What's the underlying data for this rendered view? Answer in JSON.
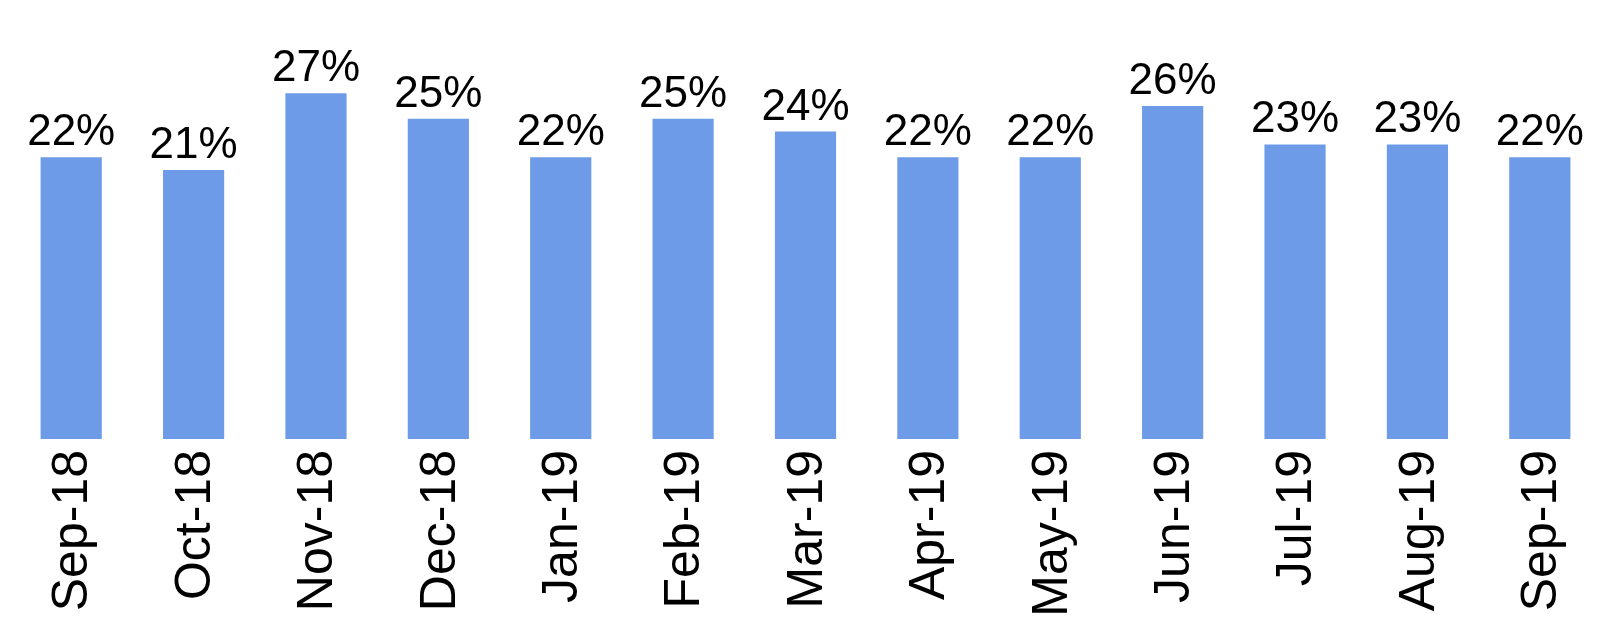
{
  "chart_data": {
    "type": "bar",
    "categories": [
      "Sep-18",
      "Oct-18",
      "Nov-18",
      "Dec-18",
      "Jan-19",
      "Feb-19",
      "Mar-19",
      "Apr-19",
      "May-19",
      "Jun-19",
      "Jul-19",
      "Aug-19",
      "Sep-19"
    ],
    "values": [
      22,
      21,
      27,
      25,
      22,
      25,
      24,
      22,
      22,
      26,
      23,
      23,
      22
    ],
    "value_labels": [
      "22%",
      "21%",
      "27%",
      "25%",
      "22%",
      "25%",
      "24%",
      "22%",
      "22%",
      "26%",
      "23%",
      "23%",
      "22%"
    ],
    "color": "#6d9be8"
  }
}
